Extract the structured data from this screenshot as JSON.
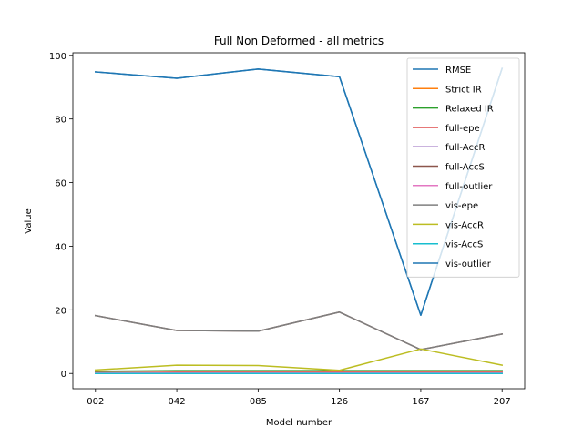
{
  "chart_data": {
    "type": "line",
    "title": "Full Non Deformed - all metrics",
    "xlabel": "Model number",
    "ylabel": "Value",
    "categories": [
      "002",
      "042",
      "085",
      "126",
      "167",
      "207"
    ],
    "ylim": [
      -4.8,
      100.8
    ],
    "yticks": [
      0,
      20,
      40,
      60,
      80,
      100
    ],
    "grid": false,
    "legend_position": "top-right",
    "series": [
      {
        "name": "RMSE",
        "color": "#1f77b4",
        "values": [
          94.8,
          92.8,
          95.7,
          93.3,
          18.3,
          95.9
        ]
      },
      {
        "name": "Strict IR",
        "color": "#ff7f0e",
        "values": [
          0.3,
          0.4,
          0.4,
          0.4,
          0.4,
          0.4
        ]
      },
      {
        "name": "Relaxed IR",
        "color": "#2ca02c",
        "values": [
          0.7,
          0.9,
          0.9,
          0.9,
          0.9,
          0.9
        ]
      },
      {
        "name": "full-epe",
        "color": "#d62728",
        "values": [
          0.2,
          0.3,
          0.3,
          0.3,
          0.3,
          0.3
        ]
      },
      {
        "name": "full-AccR",
        "color": "#9467bd",
        "values": [
          0.1,
          0.1,
          0.1,
          0.1,
          0.1,
          0.1
        ]
      },
      {
        "name": "full-AccS",
        "color": "#8c564b",
        "values": [
          18.2,
          13.5,
          13.3,
          19.3,
          7.5,
          12.4
        ]
      },
      {
        "name": "full-outlier",
        "color": "#e377c2",
        "values": [
          0.2,
          0.2,
          0.2,
          0.2,
          0.2,
          0.2
        ]
      },
      {
        "name": "vis-epe",
        "color": "#7f7f7f",
        "values": [
          18.2,
          13.5,
          13.3,
          19.3,
          7.5,
          12.4
        ]
      },
      {
        "name": "vis-AccR",
        "color": "#bcbd22",
        "values": [
          1.1,
          2.6,
          2.5,
          1.0,
          7.7,
          2.6
        ]
      },
      {
        "name": "vis-AccS",
        "color": "#17becf",
        "values": [
          0.0,
          0.0,
          0.0,
          0.0,
          0.0,
          0.0
        ]
      },
      {
        "name": "vis-outlier",
        "color": "#1f77b4",
        "values": [
          94.8,
          92.8,
          95.7,
          93.3,
          18.3,
          95.9
        ]
      }
    ]
  }
}
